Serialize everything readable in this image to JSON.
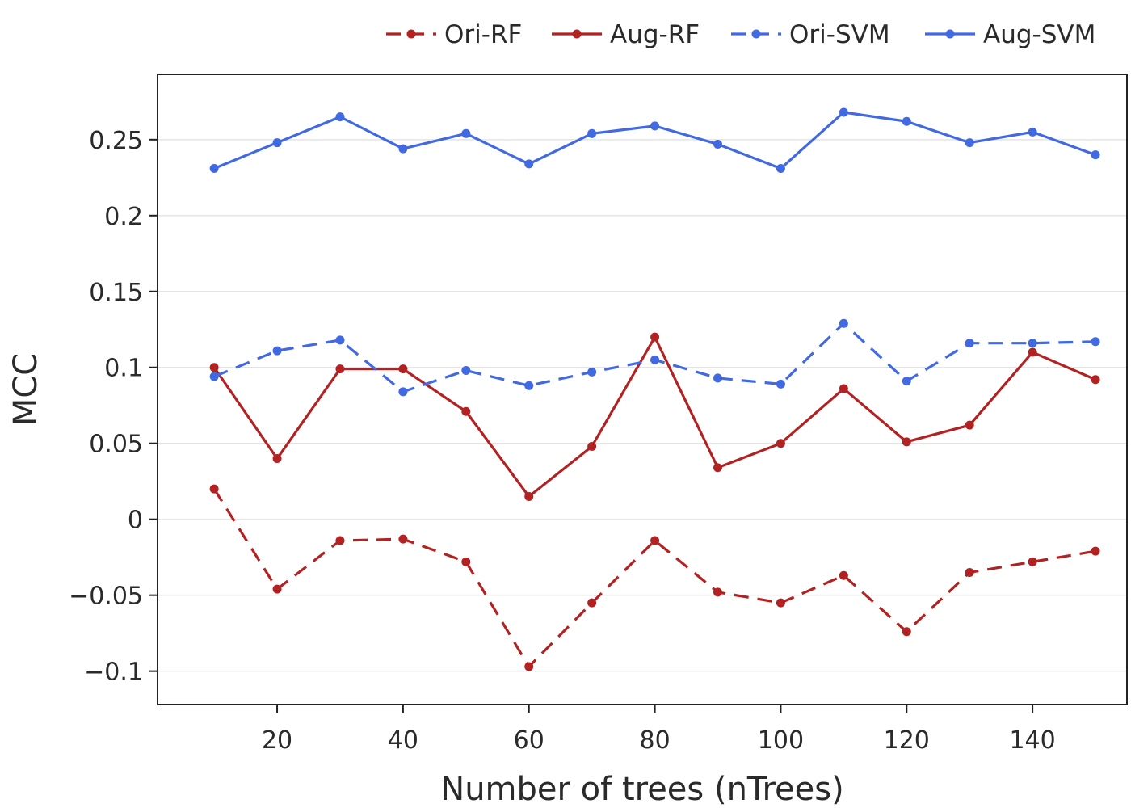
{
  "chart_data": {
    "type": "line",
    "title": "",
    "xlabel": "Number of trees (nTrees)",
    "ylabel": "MCC",
    "xlim": [
      1,
      155
    ],
    "ylim": [
      -0.122,
      0.293
    ],
    "xticks": [
      20,
      40,
      60,
      80,
      100,
      120,
      140
    ],
    "xtick_labels": [
      "20",
      "40",
      "60",
      "80",
      "100",
      "120",
      "140"
    ],
    "yticks": [
      -0.1,
      -0.05,
      0,
      0.05,
      0.1,
      0.15,
      0.2,
      0.25
    ],
    "ytick_labels": [
      "−0.1",
      "−0.05",
      "0",
      "0.05",
      "0.1",
      "0.15",
      "0.2",
      "0.25"
    ],
    "grid": "horizontal",
    "legend_position": "top-right",
    "x": [
      10,
      20,
      30,
      40,
      50,
      60,
      70,
      80,
      90,
      100,
      110,
      120,
      130,
      140,
      150
    ],
    "series": [
      {
        "name": "Ori-RF",
        "color": "#b22222",
        "dash": "dashed",
        "values": [
          0.02,
          -0.046,
          -0.014,
          -0.013,
          -0.028,
          -0.097,
          -0.055,
          -0.014,
          -0.048,
          -0.055,
          -0.037,
          -0.074,
          -0.035,
          -0.028,
          -0.021
        ]
      },
      {
        "name": "Aug-RF",
        "color": "#b22222",
        "dash": "solid",
        "values": [
          0.1,
          0.04,
          0.099,
          0.099,
          0.071,
          0.015,
          0.048,
          0.12,
          0.034,
          0.05,
          0.086,
          0.051,
          0.062,
          0.11,
          0.092
        ]
      },
      {
        "name": "Ori-SVM",
        "color": "#4169e1",
        "dash": "dashed",
        "values": [
          0.094,
          0.111,
          0.118,
          0.084,
          0.098,
          0.088,
          0.097,
          0.105,
          0.093,
          0.089,
          0.129,
          0.091,
          0.116,
          0.116,
          0.117
        ]
      },
      {
        "name": "Aug-SVM",
        "color": "#4169e1",
        "dash": "solid",
        "values": [
          0.231,
          0.248,
          0.265,
          0.244,
          0.254,
          0.234,
          0.254,
          0.259,
          0.247,
          0.231,
          0.268,
          0.262,
          0.248,
          0.255,
          0.24
        ]
      }
    ]
  }
}
